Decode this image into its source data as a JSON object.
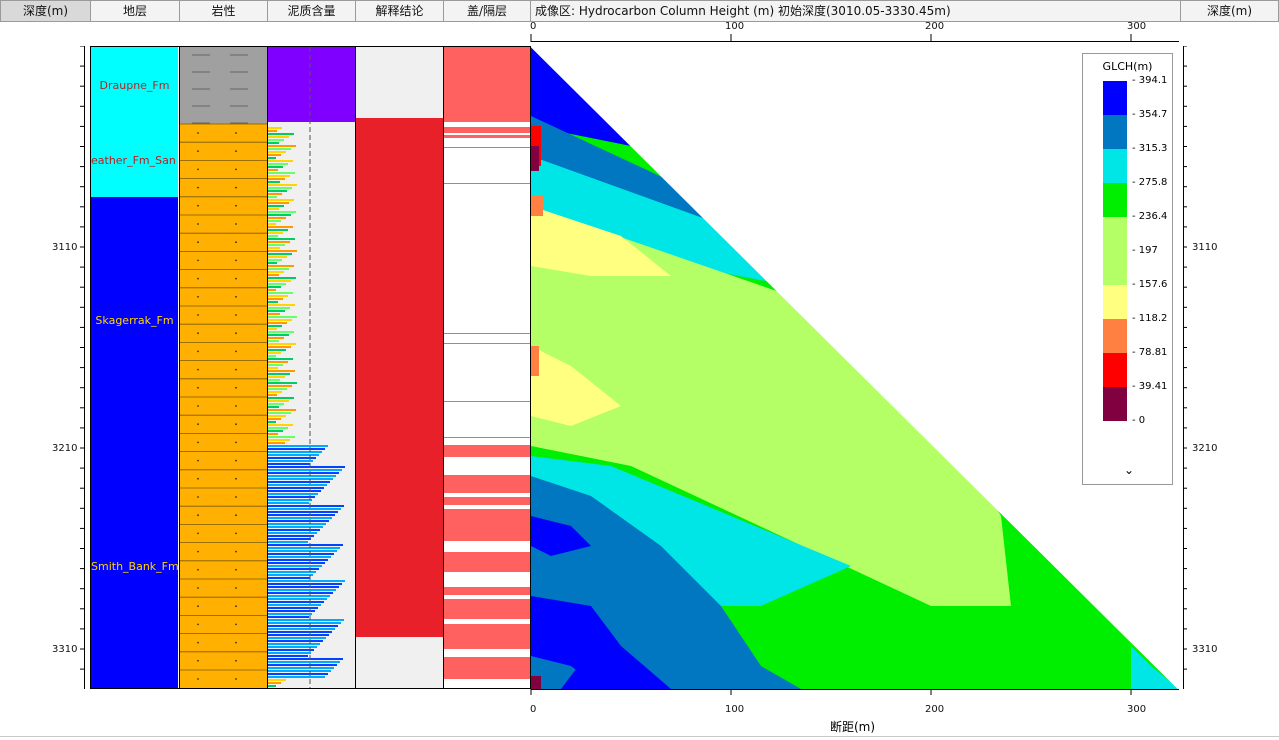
{
  "headers": {
    "depth_left": "深度(m)",
    "formation": "地层",
    "lithology": "岩性",
    "shale": "泥质含量",
    "interp": "解释结论",
    "seal": "盖/隔层",
    "imaging": "成像区: Hydrocarbon Column Height (m)  初始深度(3010.05-3330.45m)",
    "depth_right": "深度(m)"
  },
  "depth_ticks": [
    "3110",
    "3210",
    "3310"
  ],
  "distance_axis": {
    "ticks_top": [
      "0",
      "100",
      "200",
      "300"
    ],
    "ticks_bottom": [
      "0",
      "100",
      "200",
      "300"
    ],
    "label": "断距(m)"
  },
  "formations": [
    {
      "name": "Draupne_Fm",
      "color": "#00ffff",
      "text_color": "#b22222"
    },
    {
      "name": "eather_Fm_San",
      "color": "#00ffff",
      "text_color": "#b22222"
    },
    {
      "name": "Skagerrak_Fm",
      "color": "#0000ff",
      "text_color": "#ffd700"
    },
    {
      "name": "Smith_Bank_Fm",
      "color": "#0000ff",
      "text_color": "#ffd700"
    }
  ],
  "legend": {
    "title": "GLCH(m)",
    "items": [
      {
        "label": "394.1",
        "color": "#0000ff"
      },
      {
        "label": "354.7",
        "color": "#0000ff"
      },
      {
        "label": "315.3",
        "color": "#0077c0"
      },
      {
        "label": "275.8",
        "color": "#00e5e5"
      },
      {
        "label": "236.4",
        "color": "#00ee00"
      },
      {
        "label": "197",
        "color": "#b4ff66"
      },
      {
        "label": "157.6",
        "color": "#b4ff66"
      },
      {
        "label": "118.2",
        "color": "#ffff80"
      },
      {
        "label": "78.81",
        "color": "#ff8040"
      },
      {
        "label": "39.41",
        "color": "#ff0000"
      },
      {
        "label": "0",
        "color": "#800040"
      }
    ],
    "expand_icon": "chevron-down-icon"
  },
  "colors": {
    "interp_red": "#e8202a",
    "seal_red": "#ff6060",
    "sand": "#ffb000",
    "shale_gray": "#a0a0a0",
    "shale_purple": "#8000ff"
  }
}
